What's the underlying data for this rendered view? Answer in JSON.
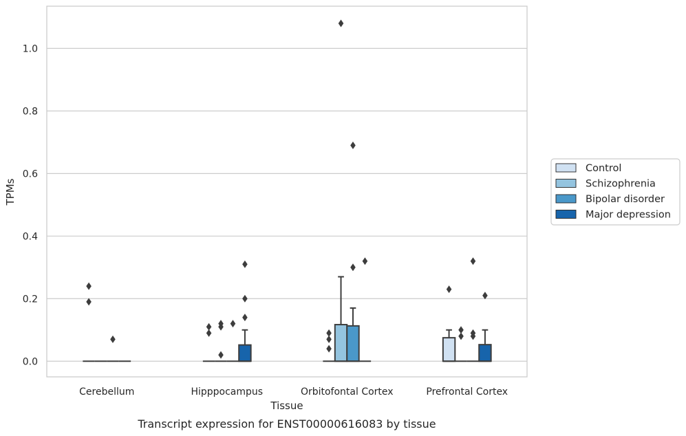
{
  "caption": "Transcript expression for ENST00000616083 by tissue",
  "chart_data": {
    "type": "box",
    "xlabel": "Tissue",
    "ylabel": "TPMs",
    "ylim": [
      -0.05,
      1.135
    ],
    "yticks": [
      0.0,
      0.2,
      0.4,
      0.6,
      0.8,
      1.0
    ],
    "ytick_labels": [
      "0.0",
      "0.2",
      "0.4",
      "0.6",
      "0.8",
      "1.0"
    ],
    "grid": "horizontal",
    "legend_position": "right",
    "categories": [
      "Cerebellum",
      "Hipppocampus",
      "Orbitofontal Cortex",
      "Prefrontal Cortex"
    ],
    "series": [
      {
        "name": "Control",
        "color": "#d0e1f2",
        "boxes": [
          {
            "q1": 0,
            "median": 0,
            "q3": 0,
            "whisker_low": 0,
            "whisker_high": 0,
            "outliers": [
              0.24,
              0.19
            ]
          },
          {
            "q1": 0,
            "median": 0,
            "q3": 0,
            "whisker_low": 0,
            "whisker_high": 0,
            "outliers": [
              0.11,
              0.09
            ]
          },
          {
            "q1": 0,
            "median": 0,
            "q3": 0,
            "whisker_low": 0,
            "whisker_high": 0,
            "outliers": [
              0.09,
              0.07,
              0.04
            ]
          },
          {
            "q1": 0,
            "median": 0,
            "q3": 0.075,
            "whisker_low": 0,
            "whisker_high": 0.1,
            "outliers": [
              0.23
            ]
          }
        ]
      },
      {
        "name": "Schizophrenia",
        "color": "#94c4df",
        "boxes": [
          {
            "q1": 0,
            "median": 0,
            "q3": 0,
            "whisker_low": 0,
            "whisker_high": 0,
            "outliers": []
          },
          {
            "q1": 0,
            "median": 0,
            "q3": 0,
            "whisker_low": 0,
            "whisker_high": 0,
            "outliers": [
              0.12,
              0.11,
              0.02
            ]
          },
          {
            "q1": 0,
            "median": 0,
            "q3": 0.117,
            "whisker_low": 0,
            "whisker_high": 0.27,
            "outliers": [
              1.08
            ]
          },
          {
            "q1": 0,
            "median": 0,
            "q3": 0,
            "whisker_low": 0,
            "whisker_high": 0,
            "outliers": [
              0.1,
              0.08
            ]
          }
        ]
      },
      {
        "name": "Bipolar disorder",
        "color": "#4a98c9",
        "boxes": [
          {
            "q1": 0,
            "median": 0,
            "q3": 0,
            "whisker_low": 0,
            "whisker_high": 0,
            "outliers": [
              0.07
            ]
          },
          {
            "q1": 0,
            "median": 0,
            "q3": 0,
            "whisker_low": 0,
            "whisker_high": 0,
            "outliers": [
              0.12
            ]
          },
          {
            "q1": 0,
            "median": 0,
            "q3": 0.113,
            "whisker_low": 0,
            "whisker_high": 0.17,
            "outliers": [
              0.69,
              0.3
            ]
          },
          {
            "q1": 0,
            "median": 0,
            "q3": 0,
            "whisker_low": 0,
            "whisker_high": 0,
            "outliers": [
              0.32,
              0.09,
              0.08
            ]
          }
        ]
      },
      {
        "name": "Major depression",
        "color": "#1764ab",
        "boxes": [
          {
            "q1": 0,
            "median": 0,
            "q3": 0,
            "whisker_low": 0,
            "whisker_high": 0,
            "outliers": []
          },
          {
            "q1": 0,
            "median": 0,
            "q3": 0.052,
            "whisker_low": 0,
            "whisker_high": 0.1,
            "outliers": [
              0.31,
              0.2,
              0.14
            ]
          },
          {
            "q1": 0,
            "median": 0,
            "q3": 0,
            "whisker_low": 0,
            "whisker_high": 0,
            "outliers": [
              0.32
            ]
          },
          {
            "q1": 0,
            "median": 0,
            "q3": 0.053,
            "whisker_low": 0,
            "whisker_high": 0.1,
            "outliers": [
              0.21
            ]
          }
        ]
      }
    ]
  }
}
